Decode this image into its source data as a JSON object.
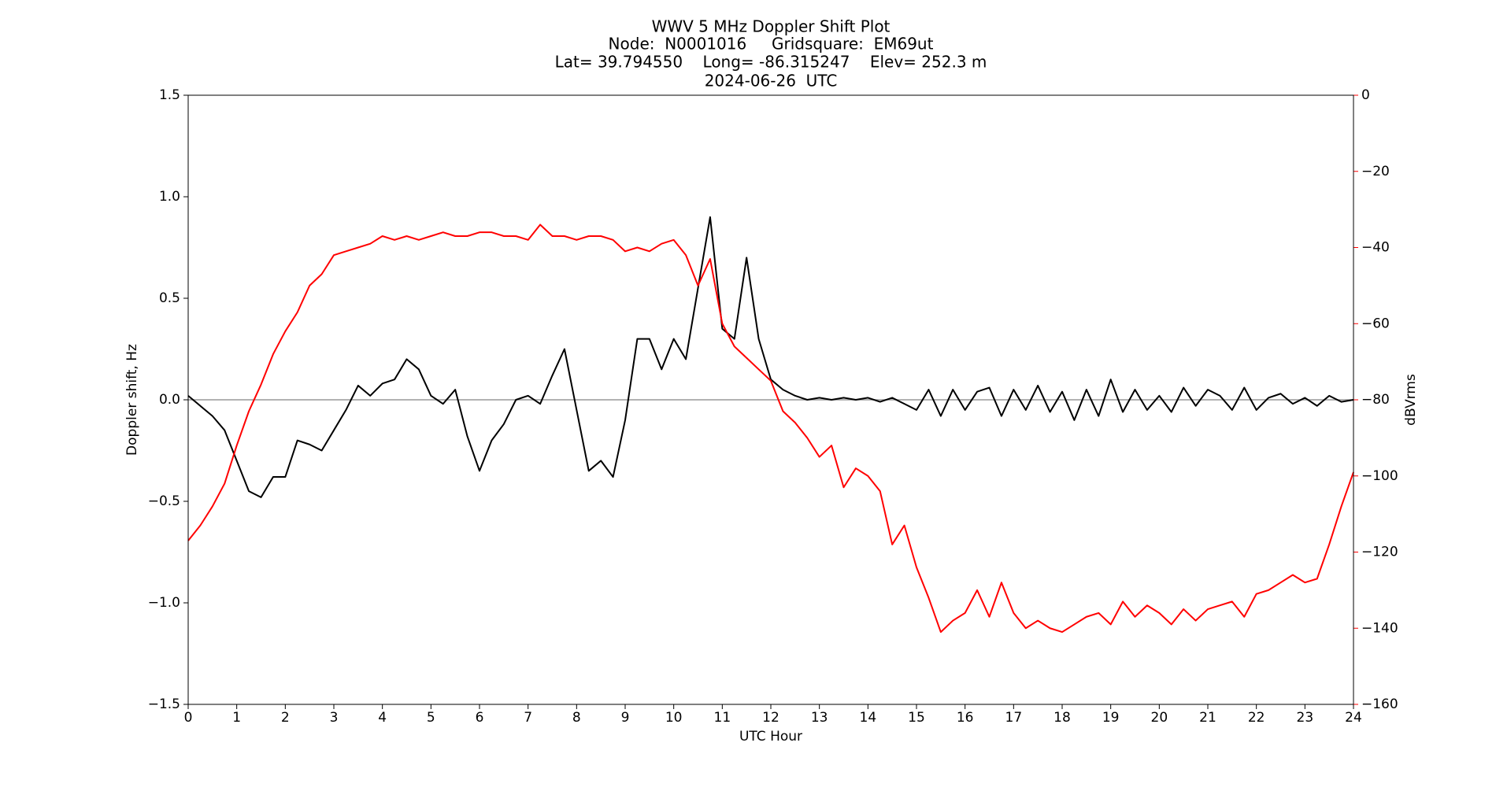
{
  "chart_data": {
    "type": "line",
    "title": [
      "WWV 5 MHz Doppler Shift Plot",
      "Node:  N0001016     Gridsquare:  EM69ut",
      "Lat= 39.794550    Long= -86.315247    Elev= 252.3 m",
      "2024-06-26  UTC"
    ],
    "xlabel": "UTC Hour",
    "ylabel": "Doppler shift, Hz",
    "y2label": "dBVrms",
    "x": [
      0,
      0.25,
      0.5,
      0.75,
      1,
      1.25,
      1.5,
      1.75,
      2,
      2.25,
      2.5,
      2.75,
      3,
      3.25,
      3.5,
      3.75,
      4,
      4.25,
      4.5,
      4.75,
      5,
      5.25,
      5.5,
      5.75,
      6,
      6.25,
      6.5,
      6.75,
      7,
      7.25,
      7.5,
      7.75,
      8,
      8.25,
      8.5,
      8.75,
      9,
      9.25,
      9.5,
      9.75,
      10,
      10.25,
      10.5,
      10.75,
      11,
      11.25,
      11.5,
      11.75,
      12,
      12.25,
      12.5,
      12.75,
      13,
      13.25,
      13.5,
      13.75,
      14,
      14.25,
      14.5,
      14.75,
      15,
      15.25,
      15.5,
      15.75,
      16,
      16.25,
      16.5,
      16.75,
      17,
      17.25,
      17.5,
      17.75,
      18,
      18.25,
      18.5,
      18.75,
      19,
      19.25,
      19.5,
      19.75,
      20,
      20.25,
      20.5,
      20.75,
      21,
      21.25,
      21.5,
      21.75,
      22,
      22.25,
      22.5,
      22.75,
      23,
      23.25,
      23.5,
      23.75,
      24
    ],
    "series": [
      {
        "color": "#000000",
        "values": [
          0.02,
          -0.03,
          -0.08,
          -0.15,
          -0.3,
          -0.45,
          -0.48,
          -0.38,
          -0.38,
          -0.2,
          -0.22,
          -0.25,
          -0.15,
          -0.05,
          0.07,
          0.02,
          0.08,
          0.1,
          0.2,
          0.15,
          0.02,
          -0.02,
          0.05,
          -0.18,
          -0.35,
          -0.2,
          -0.12,
          0.0,
          0.02,
          -0.02,
          0.12,
          0.25,
          -0.05,
          -0.35,
          -0.3,
          -0.38,
          -0.1,
          0.3,
          0.3,
          0.15,
          0.3,
          0.2,
          0.55,
          0.9,
          0.35,
          0.3,
          0.7,
          0.3,
          0.1,
          0.05,
          0.02,
          0.0,
          0.01,
          0.0,
          0.01,
          0.0,
          0.01,
          -0.01,
          0.01,
          -0.02,
          -0.05,
          0.05,
          -0.08,
          0.05,
          -0.05,
          0.04,
          0.06,
          -0.08,
          0.05,
          -0.05,
          0.07,
          -0.06,
          0.04,
          -0.1,
          0.05,
          -0.08,
          0.1,
          -0.06,
          0.05,
          -0.05,
          0.02,
          -0.06,
          0.06,
          -0.03,
          0.05,
          0.02,
          -0.05,
          0.06,
          -0.05,
          0.01,
          0.03,
          -0.02,
          0.01,
          -0.03,
          0.02,
          -0.01,
          0.0
        ]
      },
      {
        "color": "#ff0000",
        "axis": "y2",
        "values": [
          -117,
          -113,
          -108,
          -102,
          -92,
          -83,
          -76,
          -68,
          -62,
          -57,
          -50,
          -47,
          -42,
          -41,
          -40,
          -39,
          -37,
          -38,
          -37,
          -38,
          -37,
          -36,
          -37,
          -37,
          -36,
          -36,
          -37,
          -37,
          -38,
          -34,
          -37,
          -37,
          -38,
          -37,
          -37,
          -38,
          -41,
          -40,
          -41,
          -39,
          -38,
          -42,
          -50,
          -43,
          -60,
          -66,
          -69,
          -72,
          -75,
          -83,
          -86,
          -90,
          -95,
          -92,
          -103,
          -98,
          -100,
          -104,
          -118,
          -113,
          -124,
          -132,
          -141,
          -138,
          -136,
          -130,
          -137,
          -128,
          -136,
          -140,
          -138,
          -140,
          -141,
          -139,
          -137,
          -136,
          -139,
          -133,
          -137,
          -134,
          -136,
          -139,
          -135,
          -138,
          -135,
          -134,
          -133,
          -137,
          -131,
          -130,
          -128,
          -126,
          -128,
          -127,
          -118,
          -108,
          -99
        ]
      }
    ],
    "reference_line": 0,
    "xlim": [
      0,
      24
    ],
    "xticks": [
      0,
      1,
      2,
      3,
      4,
      5,
      6,
      7,
      8,
      9,
      10,
      11,
      12,
      13,
      14,
      15,
      16,
      17,
      18,
      19,
      20,
      21,
      22,
      23,
      24
    ],
    "ylim": [
      -1.5,
      1.5
    ],
    "yticks": [
      {
        "value": -1.5,
        "label": "−1.5"
      },
      {
        "value": -1.0,
        "label": "−1.0"
      },
      {
        "value": -0.5,
        "label": "−0.5"
      },
      {
        "value": 0,
        "label": "0.0"
      },
      {
        "value": 0.5,
        "label": "0.5"
      },
      {
        "value": 1.0,
        "label": "1.0"
      },
      {
        "value": 1.5,
        "label": "1.5"
      }
    ],
    "y2lim": [
      -160,
      0
    ],
    "y2ticks": [
      {
        "value": -160,
        "label": "−160"
      },
      {
        "value": -140,
        "label": "−140"
      },
      {
        "value": -120,
        "label": "−120"
      },
      {
        "value": -100,
        "label": "−100"
      },
      {
        "value": -80,
        "label": "−80"
      },
      {
        "value": -60,
        "label": "−60"
      },
      {
        "value": -40,
        "label": "−40"
      },
      {
        "value": -20,
        "label": "−20"
      },
      0
    ],
    "y2color": "#ff0000"
  }
}
